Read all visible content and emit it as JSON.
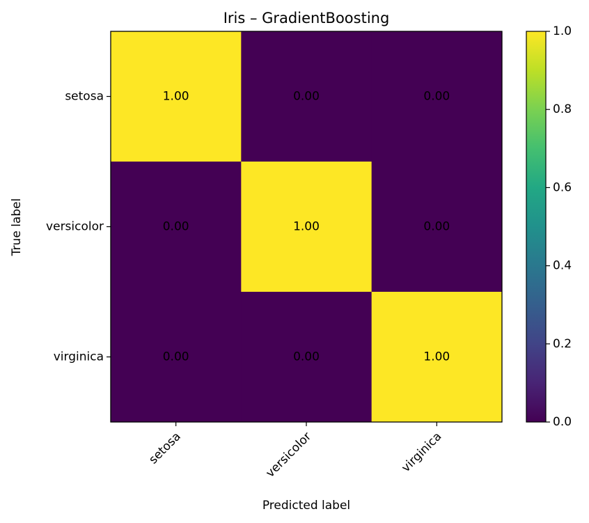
{
  "chart_data": {
    "type": "heatmap",
    "title": "Iris – GradientBoosting",
    "xlabel": "Predicted label",
    "ylabel": "True label",
    "x_categories": [
      "setosa",
      "versicolor",
      "virginica"
    ],
    "y_categories": [
      "setosa",
      "versicolor",
      "virginica"
    ],
    "values": [
      [
        1.0,
        0.0,
        0.0
      ],
      [
        0.0,
        1.0,
        0.0
      ],
      [
        0.0,
        0.0,
        1.0
      ]
    ],
    "cell_labels": [
      [
        "1.00",
        "0.00",
        "0.00"
      ],
      [
        "0.00",
        "1.00",
        "0.00"
      ],
      [
        "0.00",
        "0.00",
        "1.00"
      ]
    ],
    "colormap": "viridis",
    "color_low": "#440154",
    "color_high": "#fde725",
    "colorbar": {
      "range": [
        0.0,
        1.0
      ],
      "ticks": [
        0.0,
        0.2,
        0.4,
        0.6,
        0.8,
        1.0
      ],
      "tick_labels": [
        "0.0",
        "0.2",
        "0.4",
        "0.6",
        "0.8",
        "1.0"
      ]
    },
    "grid": false
  }
}
